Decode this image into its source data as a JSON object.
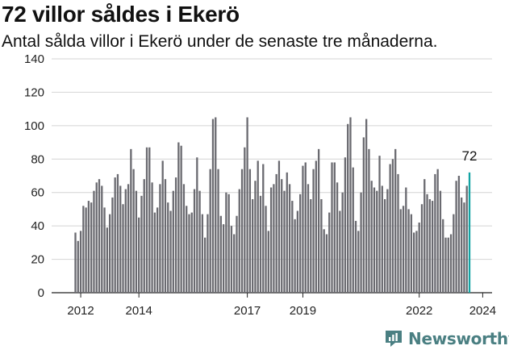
{
  "title": "72 villor såldes i Ekerö",
  "subtitle": "Antal sålda villor i Ekerö under de senaste tre månaderna.",
  "brand": "Newsworthy",
  "colors": {
    "bar": "#6a6a70",
    "highlight": "#13a3a3",
    "grid": "#d4d4d4",
    "brand": "#4a7f82"
  },
  "chart_data": {
    "type": "bar",
    "ylim": [
      0,
      140
    ],
    "yticks": [
      0,
      20,
      40,
      60,
      80,
      100,
      120,
      140
    ],
    "x_labels": [
      "2012",
      "2014",
      "2017",
      "2019",
      "2022",
      "2024"
    ],
    "x_label_index": [
      2,
      24,
      65,
      86,
      130,
      154
    ],
    "highlight_label": "72",
    "grid": true,
    "values": [
      36,
      31,
      37,
      52,
      51,
      55,
      54,
      61,
      66,
      68,
      64,
      51,
      39,
      47,
      57,
      69,
      71,
      64,
      53,
      62,
      65,
      86,
      74,
      61,
      45,
      58,
      68,
      87,
      87,
      66,
      48,
      51,
      65,
      79,
      68,
      54,
      49,
      61,
      69,
      90,
      88,
      65,
      52,
      47,
      48,
      62,
      81,
      61,
      47,
      33,
      47,
      74,
      104,
      105,
      74,
      46,
      41,
      60,
      59,
      40,
      35,
      46,
      62,
      74,
      87,
      105,
      74,
      56,
      67,
      79,
      58,
      77,
      52,
      37,
      63,
      65,
      71,
      79,
      68,
      61,
      72,
      65,
      55,
      44,
      49,
      59,
      76,
      78,
      65,
      56,
      74,
      79,
      86,
      56,
      38,
      35,
      48,
      78,
      78,
      66,
      49,
      60,
      81,
      101,
      105,
      75,
      43,
      37,
      60,
      93,
      104,
      86,
      67,
      63,
      61,
      82,
      64,
      56,
      62,
      77,
      80,
      86,
      71,
      50,
      52,
      63,
      50,
      47,
      36,
      37,
      42,
      53,
      68,
      59,
      56,
      55,
      71,
      74,
      61,
      44,
      33,
      33,
      35,
      47,
      67,
      70,
      57,
      54,
      64,
      72
    ]
  }
}
